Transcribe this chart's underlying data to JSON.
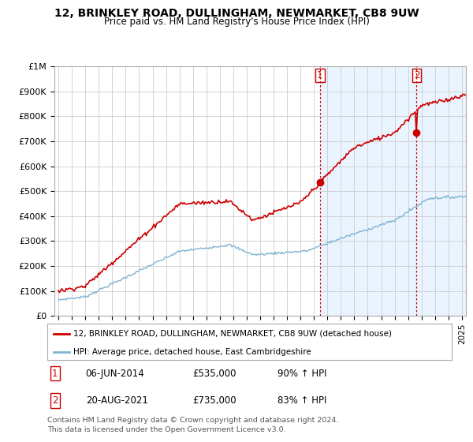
{
  "title": "12, BRINKLEY ROAD, DULLINGHAM, NEWMARKET, CB8 9UW",
  "subtitle": "Price paid vs. HM Land Registry's House Price Index (HPI)",
  "ylabel_ticks": [
    "£0",
    "£100K",
    "£200K",
    "£300K",
    "£400K",
    "£500K",
    "£600K",
    "£700K",
    "£800K",
    "£900K",
    "£1M"
  ],
  "ytick_vals": [
    0,
    100000,
    200000,
    300000,
    400000,
    500000,
    600000,
    700000,
    800000,
    900000,
    1000000
  ],
  "ylim": [
    0,
    1000000
  ],
  "xlim_start": 1994.7,
  "xlim_end": 2025.3,
  "legend_house": "12, BRINKLEY ROAD, DULLINGHAM, NEWMARKET, CB8 9UW (detached house)",
  "legend_hpi": "HPI: Average price, detached house, East Cambridgeshire",
  "sale1_x": 2014.44,
  "sale1_y": 535000,
  "sale1_label": "1",
  "sale2_x": 2021.63,
  "sale2_y": 735000,
  "sale2_label": "2",
  "annotation1_date": "06-JUN-2014",
  "annotation1_price": "£535,000",
  "annotation1_pct": "90% ↑ HPI",
  "annotation2_date": "20-AUG-2021",
  "annotation2_price": "£735,000",
  "annotation2_pct": "83% ↑ HPI",
  "footer": "Contains HM Land Registry data © Crown copyright and database right 2024.\nThis data is licensed under the Open Government Licence v3.0.",
  "house_color": "#cc0000",
  "hpi_color": "#7fb3d3",
  "shade_color": "#ddeeff",
  "vline_color": "#cc0000",
  "background_color": "#ffffff",
  "grid_color": "#cccccc"
}
